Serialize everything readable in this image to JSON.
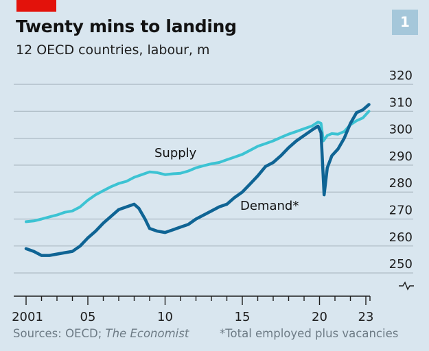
{
  "header": {
    "badge": "1"
  },
  "footer": {
    "sources_prefix": "Sources: OECD; ",
    "sources_italic": "The Economist",
    "note": "*Total employed plus vacancies"
  },
  "colors": {
    "supply": "#3cc3d3",
    "demand": "#0f6494",
    "brand_red": "#e3120b",
    "grid": "#aab8c2"
  },
  "chart_data": {
    "type": "line",
    "title": "Twenty mins to landing",
    "subtitle": "12 OECD countries, labour, m",
    "xlabel": "",
    "ylabel": "",
    "xlim": [
      2001,
      2023.2
    ],
    "ylim": [
      250,
      320
    ],
    "yticks": [
      250,
      260,
      270,
      280,
      290,
      300,
      310,
      320
    ],
    "ytick_labels": [
      "250",
      "260",
      "270",
      "280",
      "290",
      "300",
      "310",
      "320"
    ],
    "xticks": [
      2001,
      2005,
      2010,
      2015,
      2020,
      2023
    ],
    "xtick_labels": [
      "2001",
      "05",
      "10",
      "15",
      "20",
      "23"
    ],
    "grid": true,
    "series": [
      {
        "name": "Supply",
        "label": "Supply",
        "color": "#3cc3d3",
        "x": [
          2001,
          2001.5,
          2002,
          2002.5,
          2003,
          2003.5,
          2004,
          2004.5,
          2005,
          2005.5,
          2006,
          2006.5,
          2007,
          2007.5,
          2008,
          2008.5,
          2009,
          2009.5,
          2010,
          2010.5,
          2011,
          2011.5,
          2012,
          2012.5,
          2013,
          2013.5,
          2014,
          2014.5,
          2015,
          2015.5,
          2016,
          2016.5,
          2017,
          2017.5,
          2018,
          2018.5,
          2019,
          2019.5,
          2019.9,
          2020.1,
          2020.25,
          2020.5,
          2020.8,
          2021.2,
          2021.6,
          2022,
          2022.4,
          2022.8,
          2023.2
        ],
        "y": [
          269,
          269.3,
          270,
          270.8,
          271.5,
          272.5,
          273,
          274.5,
          277,
          279,
          280.5,
          282,
          283.2,
          284,
          285.5,
          286.5,
          287.5,
          287.2,
          286.5,
          286.8,
          287,
          287.8,
          289,
          289.8,
          290.5,
          291,
          292,
          293,
          294,
          295.5,
          297,
          298,
          299,
          300.3,
          301.5,
          302.5,
          303.5,
          304.5,
          306,
          305.5,
          299,
          301,
          301.7,
          301.5,
          302.5,
          305,
          306.5,
          307.5,
          310
        ]
      },
      {
        "name": "Demand*",
        "label": "Demand*",
        "color": "#0f6494",
        "x": [
          2001,
          2001.5,
          2002,
          2002.5,
          2003,
          2003.5,
          2004,
          2004.5,
          2005,
          2005.5,
          2006,
          2006.5,
          2007,
          2007.5,
          2008,
          2008.3,
          2008.7,
          2009,
          2009.5,
          2010,
          2010.5,
          2011,
          2011.5,
          2012,
          2012.5,
          2013,
          2013.5,
          2014,
          2014.5,
          2015,
          2015.5,
          2016,
          2016.5,
          2017,
          2017.5,
          2018,
          2018.5,
          2019,
          2019.5,
          2019.9,
          2020.1,
          2020.3,
          2020.5,
          2020.8,
          2021.2,
          2021.6,
          2022,
          2022.4,
          2022.8,
          2023.2
        ],
        "y": [
          259,
          258,
          256.5,
          256.5,
          257,
          257.5,
          258,
          260,
          263,
          265.5,
          268.5,
          271,
          273.5,
          274.5,
          275.5,
          274,
          270,
          266.5,
          265.5,
          265,
          266,
          267,
          268,
          270,
          271.5,
          273,
          274.5,
          275.5,
          278,
          280,
          283,
          286,
          289.5,
          291,
          293.5,
          296.5,
          299,
          301,
          303,
          304.5,
          302,
          279,
          289,
          293.5,
          296,
          300,
          305.5,
          309.5,
          310.5,
          312.5
        ]
      }
    ]
  }
}
